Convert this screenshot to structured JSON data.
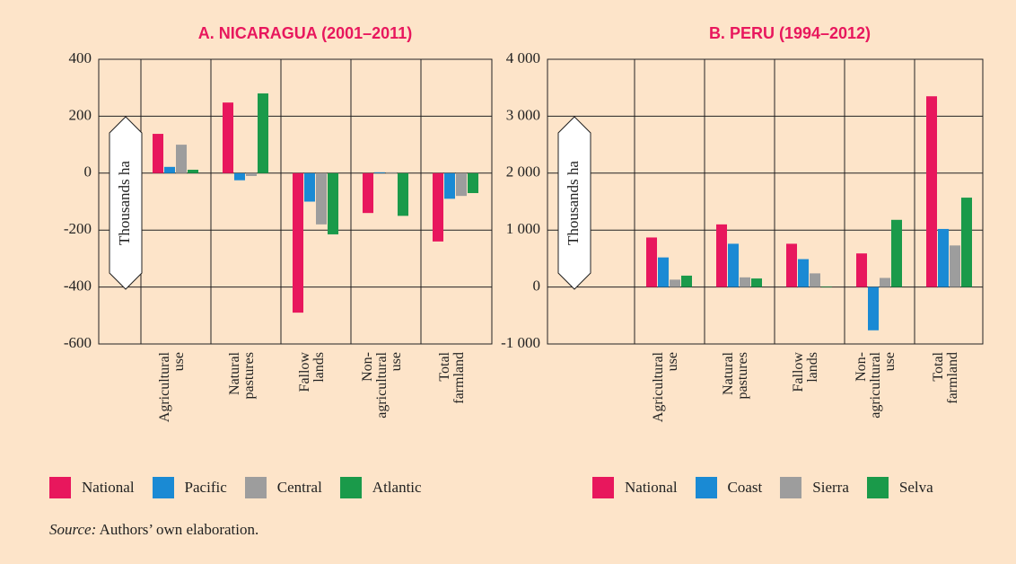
{
  "chart_data": [
    {
      "type": "bar",
      "title": "A. NICARAGUA (2001–2011)",
      "y_label": "Thousands ha",
      "categories": [
        "Agricultural\nuse",
        "Natural\npastures",
        "Fallow\nlands",
        "Non-\nagricultural\nuse",
        "Total\nfarmland"
      ],
      "series": [
        {
          "name": "National",
          "color": "#e8175d",
          "values": [
            138,
            248,
            -490,
            -140,
            -240
          ]
        },
        {
          "name": "Pacific",
          "color": "#1a8ad4",
          "values": [
            22,
            -25,
            -100,
            3,
            -90
          ]
        },
        {
          "name": "Central",
          "color": "#9d9d9d",
          "values": [
            100,
            -10,
            -180,
            3,
            -80
          ]
        },
        {
          "name": "Atlantic",
          "color": "#1a9a4a",
          "values": [
            12,
            280,
            -215,
            -150,
            -70
          ]
        }
      ],
      "ylim": [
        -600,
        400
      ],
      "yticks": [
        -600,
        -400,
        -200,
        0,
        200,
        400
      ],
      "grid": true
    },
    {
      "type": "bar",
      "title": "B. PERU (1994–2012)",
      "y_label": "Thousands ha",
      "categories": [
        "Agricultural\nuse",
        "Natural\npastures",
        "Fallow\nlands",
        "Non-\nagricultural\nuse",
        "Total\nfarmland"
      ],
      "series": [
        {
          "name": "National",
          "color": "#e8175d",
          "values": [
            870,
            1100,
            760,
            590,
            3350
          ]
        },
        {
          "name": "Coast",
          "color": "#1a8ad4",
          "values": [
            520,
            760,
            490,
            -760,
            1020
          ]
        },
        {
          "name": "Sierra",
          "color": "#9d9d9d",
          "values": [
            130,
            170,
            240,
            160,
            730
          ]
        },
        {
          "name": "Selva",
          "color": "#1a9a4a",
          "values": [
            200,
            150,
            10,
            1180,
            1570
          ]
        }
      ],
      "ylim": [
        -1000,
        4000
      ],
      "yticks": [
        {
          "value": -1000,
          "label": "-1 000"
        },
        0,
        {
          "value": 1000,
          "label": "1 000"
        },
        {
          "value": 2000,
          "label": "2 000"
        },
        {
          "value": 3000,
          "label": "3 000"
        },
        {
          "value": 4000,
          "label": "4 000"
        }
      ],
      "grid": true
    }
  ],
  "source_label": "Source:",
  "source_text": "Authors’ own elaboration."
}
